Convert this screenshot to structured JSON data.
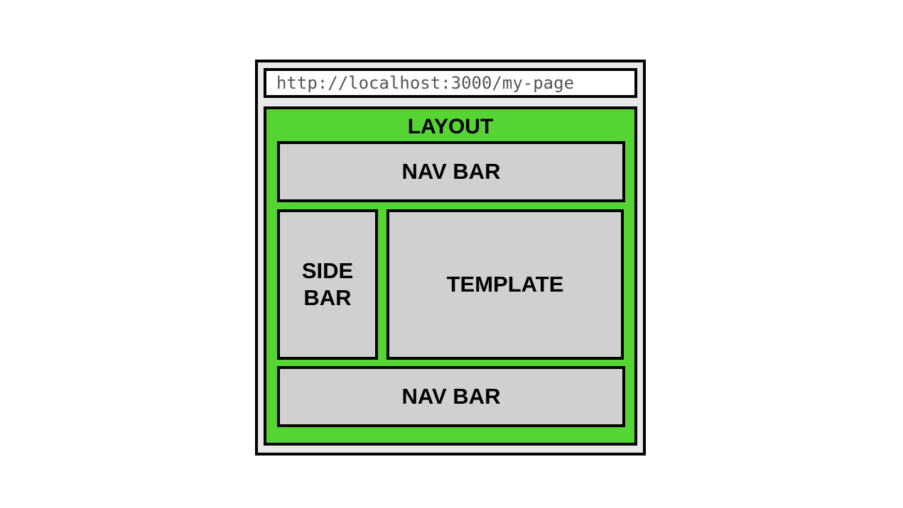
{
  "browser": {
    "url": "http://localhost:3000/my-page"
  },
  "layout": {
    "label": "LAYOUT",
    "nav_top_label": "NAV BAR",
    "side_bar_label": "SIDE BAR",
    "template_label": "TEMPLATE",
    "nav_bottom_label": "NAV BAR"
  },
  "colors": {
    "layout_green": "#55d433",
    "box_gray": "#d0d0d0",
    "frame_gray": "#e8e8e8",
    "border": "#000000"
  }
}
